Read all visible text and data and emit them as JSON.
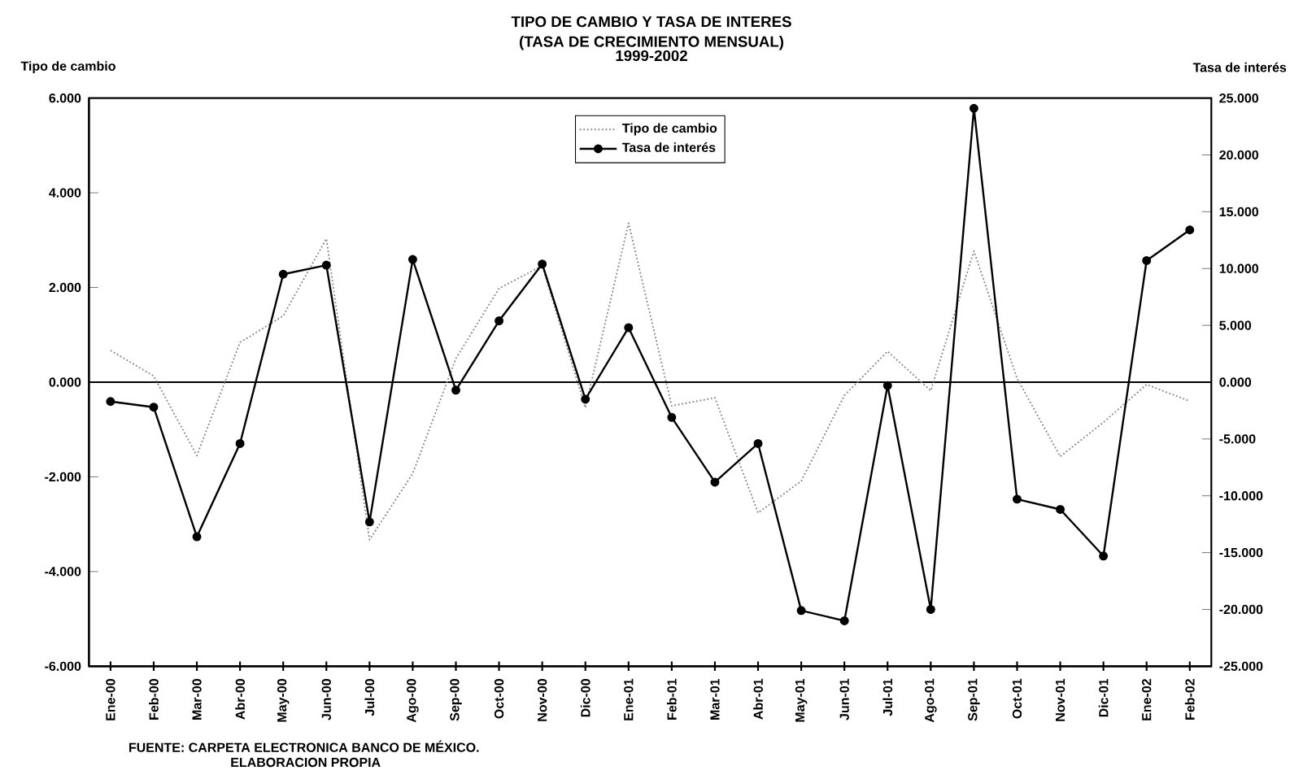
{
  "chart_data": {
    "type": "line",
    "title": "TIPO DE CAMBIO Y TASA DE INTERES",
    "subtitle": "(TASA DE CRECIMIENTO MENSUAL)",
    "ylabel": "Tipo de cambio",
    "y2label": "Tasa de interés",
    "annotations": [
      "1999-2002",
      "FUENTE: CARPETA ELECTRONICA BANCO DE MÉXICO.",
      "ELABORACION PROPIA"
    ],
    "categories": [
      "Ene-00",
      "Feb-00",
      "Mar-00",
      "Abr-00",
      "May-00",
      "Jun-00",
      "Jul-00",
      "Ago-00",
      "Sep-00",
      "Oct-00",
      "Nov-00",
      "Dic-00",
      "Ene-01",
      "Feb-01",
      "Mar-01",
      "Abr-01",
      "May-01",
      "Jun-01",
      "Jul-01",
      "Ago-01",
      "Sep-01",
      "Oct-01",
      "Nov-01",
      "Dic-01",
      "Ene-02",
      "Feb-02"
    ],
    "series": [
      {
        "name": "Tipo de cambio",
        "color": "#888888",
        "line_style": "dotted",
        "marker": "none",
        "values": [
          0.67,
          0.13,
          -1.55,
          0.84,
          1.4,
          3.03,
          -3.33,
          -1.93,
          0.5,
          1.98,
          2.46,
          -0.54,
          3.36,
          -0.5,
          -0.33,
          -2.76,
          -2.09,
          -0.28,
          0.65,
          -0.18,
          2.77,
          0.08,
          -1.57,
          -0.85,
          -0.05,
          -0.4
        ]
      },
      {
        "name": "Tasa de interés",
        "color": "#000000",
        "line_style": "solid",
        "marker": "circle",
        "axis": "y2",
        "values": [
          -1.7,
          -2.2,
          -13.6,
          -5.4,
          9.5,
          10.3,
          -12.3,
          10.8,
          -0.7,
          5.4,
          10.4,
          -1.5,
          4.8,
          -3.1,
          -8.8,
          -5.4,
          -20.1,
          -21.0,
          -0.3,
          -20.0,
          24.1,
          -10.3,
          -11.2,
          -15.3,
          10.7,
          13.4
        ]
      }
    ],
    "ylim": [
      -6,
      6
    ],
    "yticks": [
      {
        "value": -6,
        "label": "-6.000"
      },
      {
        "value": -4,
        "label": "-4.000"
      },
      {
        "value": -2,
        "label": "-2.000"
      },
      {
        "value": 0,
        "label": "0.000"
      },
      {
        "value": 2,
        "label": "2.000"
      },
      {
        "value": 4,
        "label": "4.000"
      },
      {
        "value": 6,
        "label": "6.000"
      }
    ],
    "y2lim": [
      -25,
      25
    ],
    "y2ticks": [
      {
        "value": -25,
        "label": "-25.000"
      },
      {
        "value": -20,
        "label": "-20.000"
      },
      {
        "value": -15,
        "label": "-15.000"
      },
      {
        "value": -10,
        "label": "-10.000"
      },
      {
        "value": -5,
        "label": "-5.000"
      },
      {
        "value": 0,
        "label": "0.000"
      },
      {
        "value": 5,
        "label": "5.000"
      },
      {
        "value": 10,
        "label": "10.000"
      },
      {
        "value": 15,
        "label": "15.000"
      },
      {
        "value": 20,
        "label": "20.000"
      },
      {
        "value": 25,
        "label": "25.000"
      }
    ],
    "ref_lines": [
      {
        "axis": "y",
        "value": 0
      }
    ],
    "legend": "top"
  }
}
